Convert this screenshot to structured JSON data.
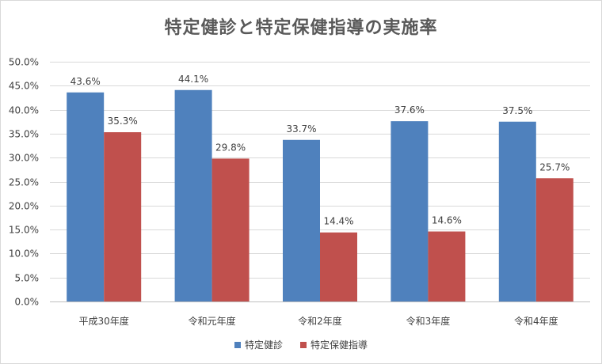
{
  "chart_data": {
    "type": "bar",
    "title": "特定健診と特定保健指導の実施率",
    "categories": [
      "平成30年度",
      "令和元年度",
      "令和2年度",
      "令和3年度",
      "令和4年度"
    ],
    "series": [
      {
        "name": "特定健診",
        "color": "#4f81bd",
        "values": [
          43.6,
          44.1,
          33.7,
          37.6,
          37.5
        ],
        "labels": [
          "43.6%",
          "44.1%",
          "33.7%",
          "37.6%",
          "37.5%"
        ]
      },
      {
        "name": "特定保健指導",
        "color": "#c0504d",
        "values": [
          35.3,
          29.8,
          14.4,
          14.6,
          25.7
        ],
        "labels": [
          "35.3%",
          "29.8%",
          "14.4%",
          "14.6%",
          "25.7%"
        ]
      }
    ],
    "ylim": [
      0,
      50
    ],
    "yticks": [
      0,
      5,
      10,
      15,
      20,
      25,
      30,
      35,
      40,
      45,
      50
    ],
    "ytick_labels": [
      "0.0%",
      "5.0%",
      "10.0%",
      "15.0%",
      "20.0%",
      "25.0%",
      "30.0%",
      "35.0%",
      "40.0%",
      "45.0%",
      "50.0%"
    ],
    "grid": true,
    "legend_position": "bottom"
  }
}
